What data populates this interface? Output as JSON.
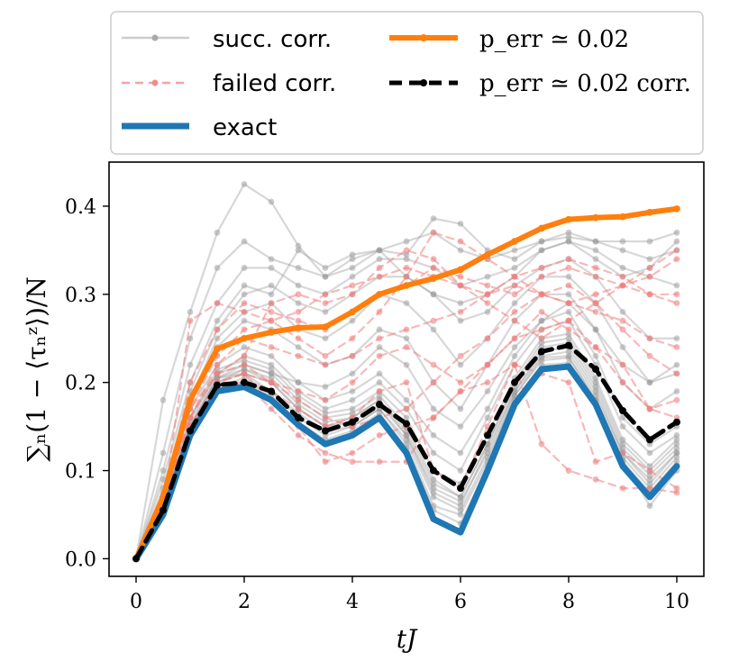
{
  "chart_data": {
    "type": "line",
    "xlabel": "tJ",
    "ylabel": "∑ₙ(1 − ⟨τₙᶻ⟩)/N",
    "xlim": [
      -0.5,
      10.5
    ],
    "ylim": [
      -0.02,
      0.45
    ],
    "xticks": [
      0,
      2,
      4,
      6,
      8,
      10
    ],
    "yticks": [
      0.0,
      0.1,
      0.2,
      0.3,
      0.4
    ],
    "xtick_labels": [
      "0",
      "2",
      "4",
      "6",
      "8",
      "10"
    ],
    "ytick_labels": [
      "0.0",
      "0.1",
      "0.2",
      "0.3",
      "0.4"
    ],
    "grid": false,
    "legend_position": "top (outside)",
    "legend": [
      {
        "label": "succ. corr.",
        "color": "#aaaaaa",
        "style": "solid-thin-dots"
      },
      {
        "label": "failed corr.",
        "color": "#f28b8b",
        "style": "dashed-thin-dots"
      },
      {
        "label": "exact",
        "color": "#1f77b4",
        "style": "solid-thick"
      },
      {
        "label": "p_err ≃ 0.02",
        "color": "#ff7f0e",
        "style": "solid-thick-dots"
      },
      {
        "label": "p_err ≃ 0.02 corr.",
        "color": "#000000",
        "style": "dashed-thick-dots"
      }
    ],
    "x": [
      0,
      0.5,
      1,
      1.5,
      2,
      2.5,
      3,
      3.5,
      4,
      4.5,
      5,
      5.5,
      6,
      6.5,
      7,
      7.5,
      8,
      8.5,
      9,
      9.5,
      10
    ],
    "series": [
      {
        "name": "exact",
        "color": "#1f77b4",
        "values": [
          0,
          0.05,
          0.14,
          0.19,
          0.195,
          0.18,
          0.152,
          0.13,
          0.14,
          0.16,
          0.12,
          0.045,
          0.03,
          0.1,
          0.175,
          0.215,
          0.218,
          0.175,
          0.105,
          0.07,
          0.105
        ]
      },
      {
        "name": "p_err ≃ 0.02",
        "color": "#ff7f0e",
        "values": [
          0,
          0.07,
          0.18,
          0.238,
          0.25,
          0.257,
          0.262,
          0.263,
          0.28,
          0.3,
          0.31,
          0.318,
          0.328,
          0.345,
          0.36,
          0.375,
          0.385,
          0.387,
          0.388,
          0.393,
          0.397
        ]
      },
      {
        "name": "p_err ≃ 0.02 corr.",
        "color": "#000000",
        "values": [
          0,
          0.055,
          0.145,
          0.197,
          0.2,
          0.19,
          0.16,
          0.145,
          0.155,
          0.175,
          0.153,
          0.1,
          0.08,
          0.14,
          0.2,
          0.235,
          0.242,
          0.215,
          0.168,
          0.135,
          0.155
        ]
      }
    ],
    "bundles": {
      "succ_corr": [
        [
          0,
          0.06,
          0.15,
          0.205,
          0.21,
          0.19,
          0.16,
          0.14,
          0.15,
          0.17,
          0.13,
          0.06,
          0.05,
          0.11,
          0.185,
          0.225,
          0.228,
          0.18,
          0.115,
          0.08,
          0.115
        ],
        [
          0,
          0.055,
          0.145,
          0.2,
          0.215,
          0.2,
          0.17,
          0.15,
          0.16,
          0.18,
          0.14,
          0.075,
          0.06,
          0.125,
          0.19,
          0.235,
          0.24,
          0.19,
          0.12,
          0.09,
          0.12
        ],
        [
          0,
          0.065,
          0.16,
          0.21,
          0.22,
          0.21,
          0.18,
          0.16,
          0.165,
          0.185,
          0.15,
          0.09,
          0.07,
          0.13,
          0.2,
          0.245,
          0.25,
          0.2,
          0.13,
          0.1,
          0.13
        ],
        [
          0,
          0.05,
          0.14,
          0.19,
          0.2,
          0.185,
          0.155,
          0.135,
          0.145,
          0.165,
          0.125,
          0.055,
          0.04,
          0.105,
          0.18,
          0.22,
          0.222,
          0.177,
          0.11,
          0.075,
          0.11
        ],
        [
          0,
          0.06,
          0.155,
          0.21,
          0.23,
          0.22,
          0.19,
          0.17,
          0.18,
          0.2,
          0.17,
          0.12,
          0.1,
          0.16,
          0.22,
          0.26,
          0.27,
          0.22,
          0.15,
          0.12,
          0.14
        ],
        [
          0,
          0.07,
          0.17,
          0.22,
          0.24,
          0.23,
          0.2,
          0.18,
          0.19,
          0.21,
          0.18,
          0.14,
          0.12,
          0.17,
          0.23,
          0.27,
          0.28,
          0.23,
          0.16,
          0.13,
          0.15
        ],
        [
          0,
          0.055,
          0.15,
          0.2,
          0.21,
          0.2,
          0.17,
          0.15,
          0.155,
          0.175,
          0.14,
          0.08,
          0.065,
          0.12,
          0.19,
          0.23,
          0.235,
          0.185,
          0.12,
          0.085,
          0.12
        ],
        [
          0,
          0.065,
          0.16,
          0.215,
          0.225,
          0.215,
          0.185,
          0.165,
          0.17,
          0.19,
          0.16,
          0.1,
          0.085,
          0.14,
          0.205,
          0.25,
          0.255,
          0.205,
          0.135,
          0.105,
          0.135
        ],
        [
          0,
          0.06,
          0.15,
          0.205,
          0.215,
          0.205,
          0.175,
          0.155,
          0.16,
          0.18,
          0.145,
          0.085,
          0.07,
          0.13,
          0.195,
          0.24,
          0.245,
          0.195,
          0.125,
          0.095,
          0.125
        ],
        [
          0,
          0.07,
          0.175,
          0.24,
          0.27,
          0.26,
          0.24,
          0.22,
          0.23,
          0.26,
          0.25,
          0.2,
          0.17,
          0.22,
          0.27,
          0.3,
          0.3,
          0.26,
          0.2,
          0.17,
          0.19
        ],
        [
          0,
          0.075,
          0.18,
          0.25,
          0.28,
          0.29,
          0.26,
          0.25,
          0.27,
          0.3,
          0.29,
          0.26,
          0.22,
          0.25,
          0.29,
          0.32,
          0.32,
          0.29,
          0.24,
          0.2,
          0.22
        ],
        [
          0,
          0.08,
          0.19,
          0.26,
          0.3,
          0.31,
          0.29,
          0.28,
          0.3,
          0.32,
          0.32,
          0.3,
          0.27,
          0.28,
          0.31,
          0.33,
          0.34,
          0.32,
          0.28,
          0.25,
          0.25
        ],
        [
          0,
          0.1,
          0.22,
          0.29,
          0.33,
          0.33,
          0.31,
          0.3,
          0.32,
          0.34,
          0.34,
          0.33,
          0.31,
          0.32,
          0.33,
          0.35,
          0.36,
          0.35,
          0.33,
          0.32,
          0.31
        ],
        [
          0,
          0.12,
          0.25,
          0.33,
          0.36,
          0.34,
          0.33,
          0.32,
          0.34,
          0.35,
          0.36,
          0.37,
          0.35,
          0.34,
          0.35,
          0.36,
          0.37,
          0.36,
          0.35,
          0.34,
          0.35
        ],
        [
          0,
          0.18,
          0.28,
          0.37,
          0.425,
          0.405,
          0.355,
          0.32,
          0.33,
          0.35,
          0.345,
          0.386,
          0.38,
          0.35,
          0.34,
          0.36,
          0.365,
          0.36,
          0.36,
          0.36,
          0.37
        ],
        [
          0,
          0.09,
          0.2,
          0.27,
          0.31,
          0.3,
          0.35,
          0.33,
          0.345,
          0.35,
          0.32,
          0.3,
          0.29,
          0.3,
          0.32,
          0.35,
          0.36,
          0.34,
          0.32,
          0.33,
          0.36
        ],
        [
          0,
          0.06,
          0.15,
          0.205,
          0.22,
          0.21,
          0.2,
          0.195,
          0.21,
          0.24,
          0.22,
          0.17,
          0.15,
          0.19,
          0.24,
          0.27,
          0.29,
          0.26,
          0.22,
          0.2,
          0.21
        ],
        [
          0,
          0.055,
          0.145,
          0.195,
          0.205,
          0.19,
          0.165,
          0.145,
          0.15,
          0.17,
          0.135,
          0.07,
          0.055,
          0.115,
          0.185,
          0.228,
          0.23,
          0.18,
          0.112,
          0.06,
          0.1
        ]
      ],
      "failed_corr": [
        [
          0,
          0.06,
          0.2,
          0.26,
          0.29,
          0.28,
          0.27,
          0.26,
          0.28,
          0.3,
          0.31,
          0.33,
          0.32,
          0.31,
          0.3,
          0.32,
          0.33,
          0.32,
          0.31,
          0.3,
          0.29
        ],
        [
          0,
          0.06,
          0.27,
          0.29,
          0.28,
          0.27,
          0.25,
          0.23,
          0.25,
          0.28,
          0.32,
          0.37,
          0.36,
          0.34,
          0.32,
          0.3,
          0.29,
          0.3,
          0.31,
          0.33,
          0.35
        ],
        [
          0,
          0.06,
          0.17,
          0.21,
          0.23,
          0.29,
          0.3,
          0.29,
          0.3,
          0.33,
          0.35,
          0.34,
          0.31,
          0.29,
          0.27,
          0.25,
          0.27,
          0.29,
          0.31,
          0.32,
          0.34
        ],
        [
          0,
          0.06,
          0.15,
          0.2,
          0.21,
          0.18,
          0.15,
          0.11,
          0.12,
          0.14,
          0.15,
          0.16,
          0.19,
          0.22,
          0.25,
          0.26,
          0.27,
          0.24,
          0.2,
          0.17,
          0.18
        ],
        [
          0,
          0.055,
          0.14,
          0.19,
          0.2,
          0.17,
          0.14,
          0.12,
          0.11,
          0.11,
          0.11,
          0.16,
          0.19,
          0.2,
          0.22,
          0.21,
          0.2,
          0.11,
          0.12,
          0.1,
          0.08
        ],
        [
          0,
          0.06,
          0.16,
          0.21,
          0.22,
          0.2,
          0.18,
          0.16,
          0.15,
          0.16,
          0.17,
          0.2,
          0.23,
          0.25,
          0.28,
          0.3,
          0.31,
          0.29,
          0.26,
          0.23,
          0.21
        ],
        [
          0,
          0.065,
          0.16,
          0.22,
          0.25,
          0.24,
          0.23,
          0.22,
          0.23,
          0.25,
          0.26,
          0.27,
          0.28,
          0.3,
          0.31,
          0.3,
          0.29,
          0.28,
          0.27,
          0.25,
          0.24
        ],
        [
          0,
          0.06,
          0.15,
          0.2,
          0.21,
          0.2,
          0.19,
          0.18,
          0.2,
          0.23,
          0.24,
          0.22,
          0.2,
          0.22,
          0.25,
          0.28,
          0.26,
          0.24,
          0.22,
          0.17,
          0.16
        ],
        [
          0,
          0.065,
          0.17,
          0.23,
          0.26,
          0.27,
          0.28,
          0.3,
          0.31,
          0.32,
          0.33,
          0.32,
          0.31,
          0.3,
          0.32,
          0.33,
          0.34,
          0.33,
          0.32,
          0.3,
          0.3
        ],
        [
          0,
          0.06,
          0.15,
          0.2,
          0.2,
          0.19,
          0.17,
          0.15,
          0.16,
          0.19,
          0.2,
          0.1,
          0.08,
          0.15,
          0.22,
          0.13,
          0.1,
          0.09,
          0.08,
          0.08,
          0.075
        ]
      ]
    }
  }
}
